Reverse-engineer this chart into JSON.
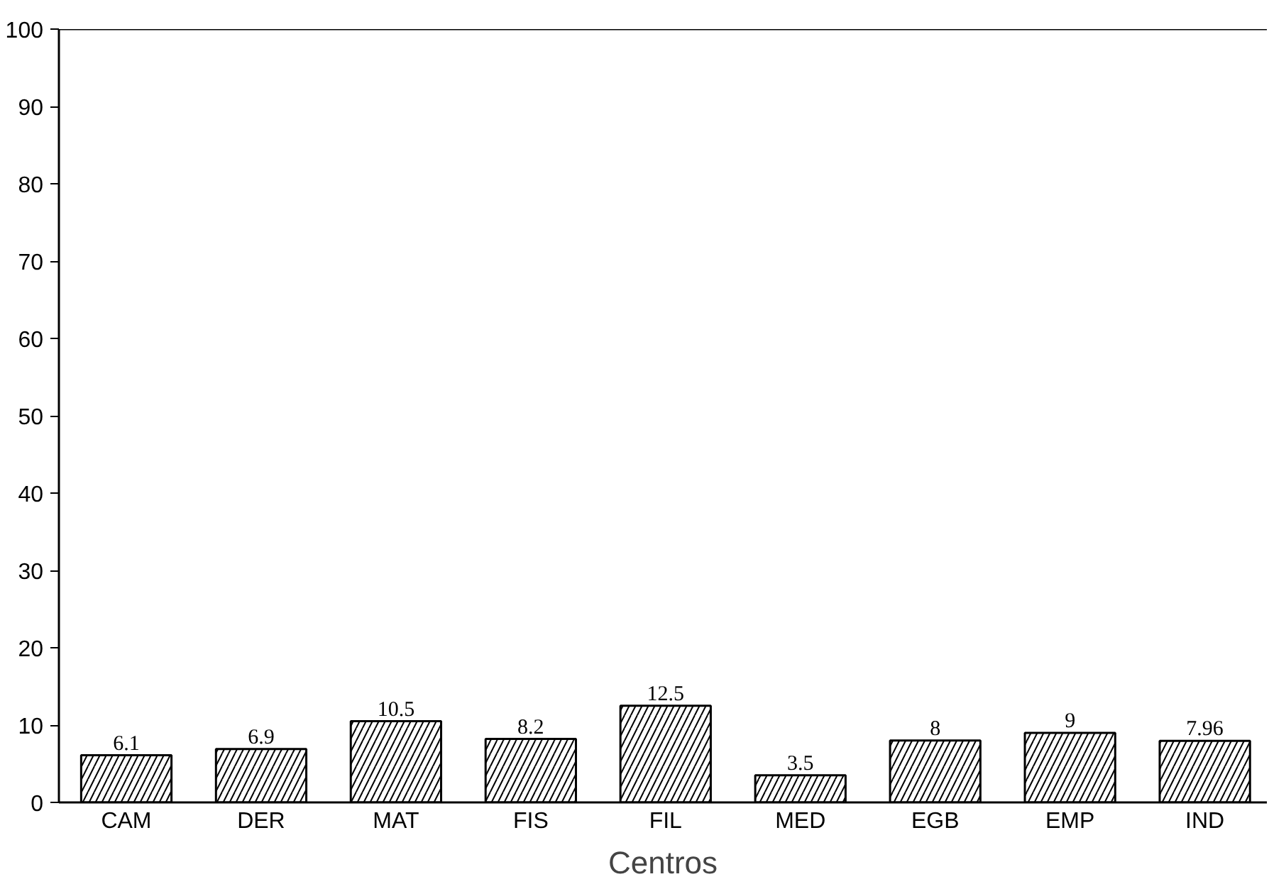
{
  "chart_data": {
    "type": "bar",
    "xlabel": "Centros",
    "categories": [
      "CAM",
      "DER",
      "MAT",
      "FIS",
      "FIL",
      "MED",
      "EGB",
      "EMP",
      "IND"
    ],
    "values": [
      6.1,
      6.9,
      10.5,
      8.2,
      12.5,
      3.5,
      8,
      9,
      7.96
    ],
    "color": "#000000",
    "ylim": [
      0,
      100
    ],
    "yticks": [
      0,
      10,
      20,
      30,
      40,
      50,
      60,
      70,
      80,
      90,
      100
    ],
    "grid": false,
    "data_labels": true
  }
}
